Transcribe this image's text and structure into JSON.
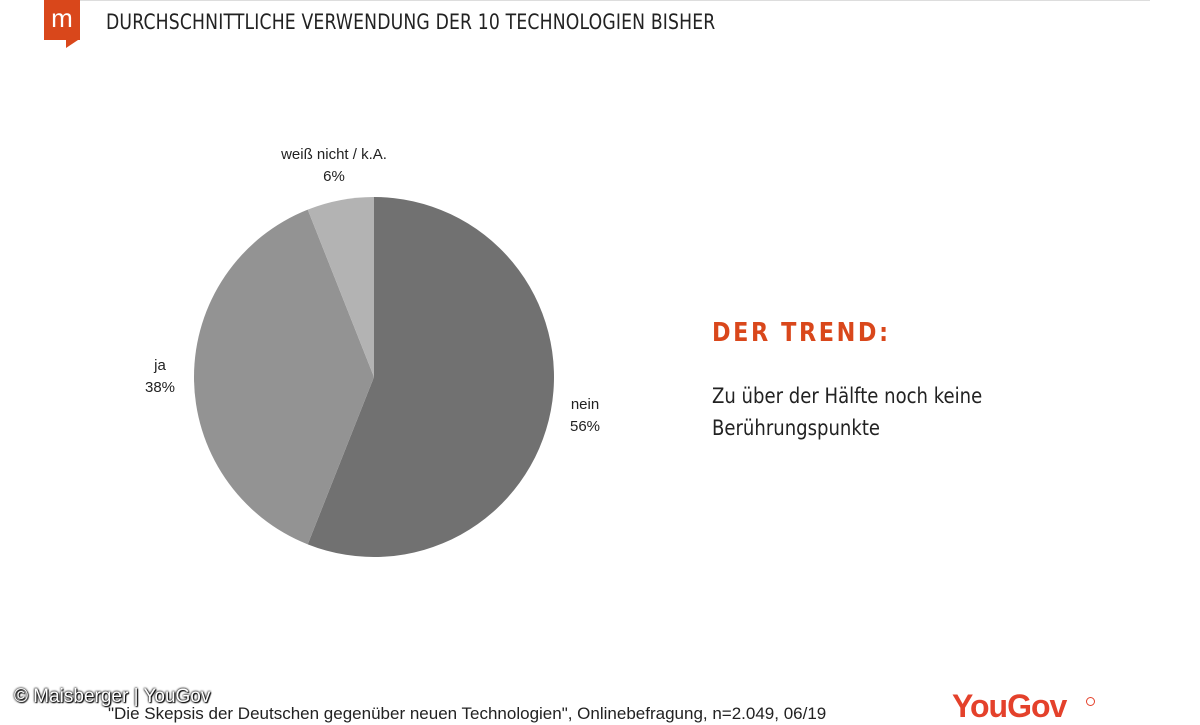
{
  "header": {
    "logo_letter": "m",
    "title": "DURCHSCHNITTLICHE VERWENDUNG DER 10 TECHNOLOGIEN BISHER"
  },
  "chart_data": {
    "type": "pie",
    "title": "",
    "slices": [
      {
        "label": "nein",
        "value": 56,
        "value_label": "56%",
        "color": "#717171"
      },
      {
        "label": "ja",
        "value": 38,
        "value_label": "38%",
        "color": "#939393"
      },
      {
        "label": "weiß nicht / k.A.",
        "value": 6,
        "value_label": "6%",
        "color": "#b3b3b3"
      }
    ],
    "start": "12 o'clock",
    "direction": "clockwise"
  },
  "trend": {
    "title": "DER TREND:",
    "text": "Zu über der Hälfte noch keine Berührungspunkte"
  },
  "footer": {
    "copyright": "© Maisberger | YouGov",
    "source": "\"Die Skepsis der Deutschen gegenüber neuen Technologien\", Onlinebefragung, n=2.049, 06/19",
    "brand": "YouGov"
  },
  "colors": {
    "accent": "#d9471b",
    "brand": "#e4412b"
  }
}
